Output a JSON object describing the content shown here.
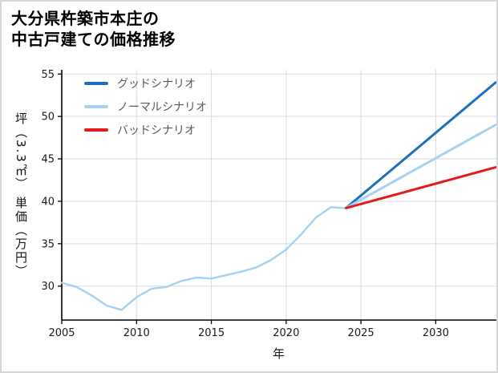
{
  "title": {
    "line1": "大分県杵築市本庄の",
    "line2": "中古戸建ての価格推移"
  },
  "chart_data": {
    "type": "line",
    "title": "大分県杵築市本庄の中古戸建ての価格推移",
    "xlabel": "年",
    "ylabel": "坪（3.3㎡） 単価（万円）",
    "xlim": [
      2005,
      2034
    ],
    "ylim": [
      26,
      55.5
    ],
    "xticks": [
      2005,
      2010,
      2015,
      2020,
      2025,
      2030
    ],
    "yticks": [
      30,
      35,
      40,
      45,
      50,
      55
    ],
    "grid": true,
    "grid_color": "#d9d9d9",
    "legend_position": "upper left",
    "series": [
      {
        "id": "history",
        "name": "",
        "in_legend": false,
        "color": "#a6d1f0",
        "width": 2.4,
        "x": [
          2005,
          2006,
          2007,
          2008,
          2009,
          2010,
          2011,
          2012,
          2013,
          2014,
          2015,
          2016,
          2017,
          2018,
          2019,
          2020,
          2021,
          2022,
          2023,
          2024
        ],
        "y": [
          30.4,
          29.9,
          28.9,
          27.7,
          27.2,
          28.7,
          29.7,
          29.9,
          30.6,
          31.0,
          30.9,
          31.3,
          31.7,
          32.2,
          33.1,
          34.3,
          36.1,
          38.1,
          39.3,
          39.2
        ]
      },
      {
        "id": "good-scenario",
        "name": "グッドシナリオ",
        "in_legend": true,
        "color": "#1a70bd",
        "width": 3,
        "x": [
          2024,
          2034
        ],
        "y": [
          39.2,
          54.0
        ]
      },
      {
        "id": "normal-scenario",
        "name": "ノーマルシナリオ",
        "in_legend": true,
        "color": "#a6d1f0",
        "width": 3,
        "x": [
          2024,
          2034
        ],
        "y": [
          39.2,
          49.0
        ]
      },
      {
        "id": "bad-scenario",
        "name": "バッドシナリオ",
        "in_legend": true,
        "color": "#e41a1c",
        "width": 3,
        "x": [
          2024,
          2034
        ],
        "y": [
          39.2,
          44.0
        ]
      }
    ]
  }
}
